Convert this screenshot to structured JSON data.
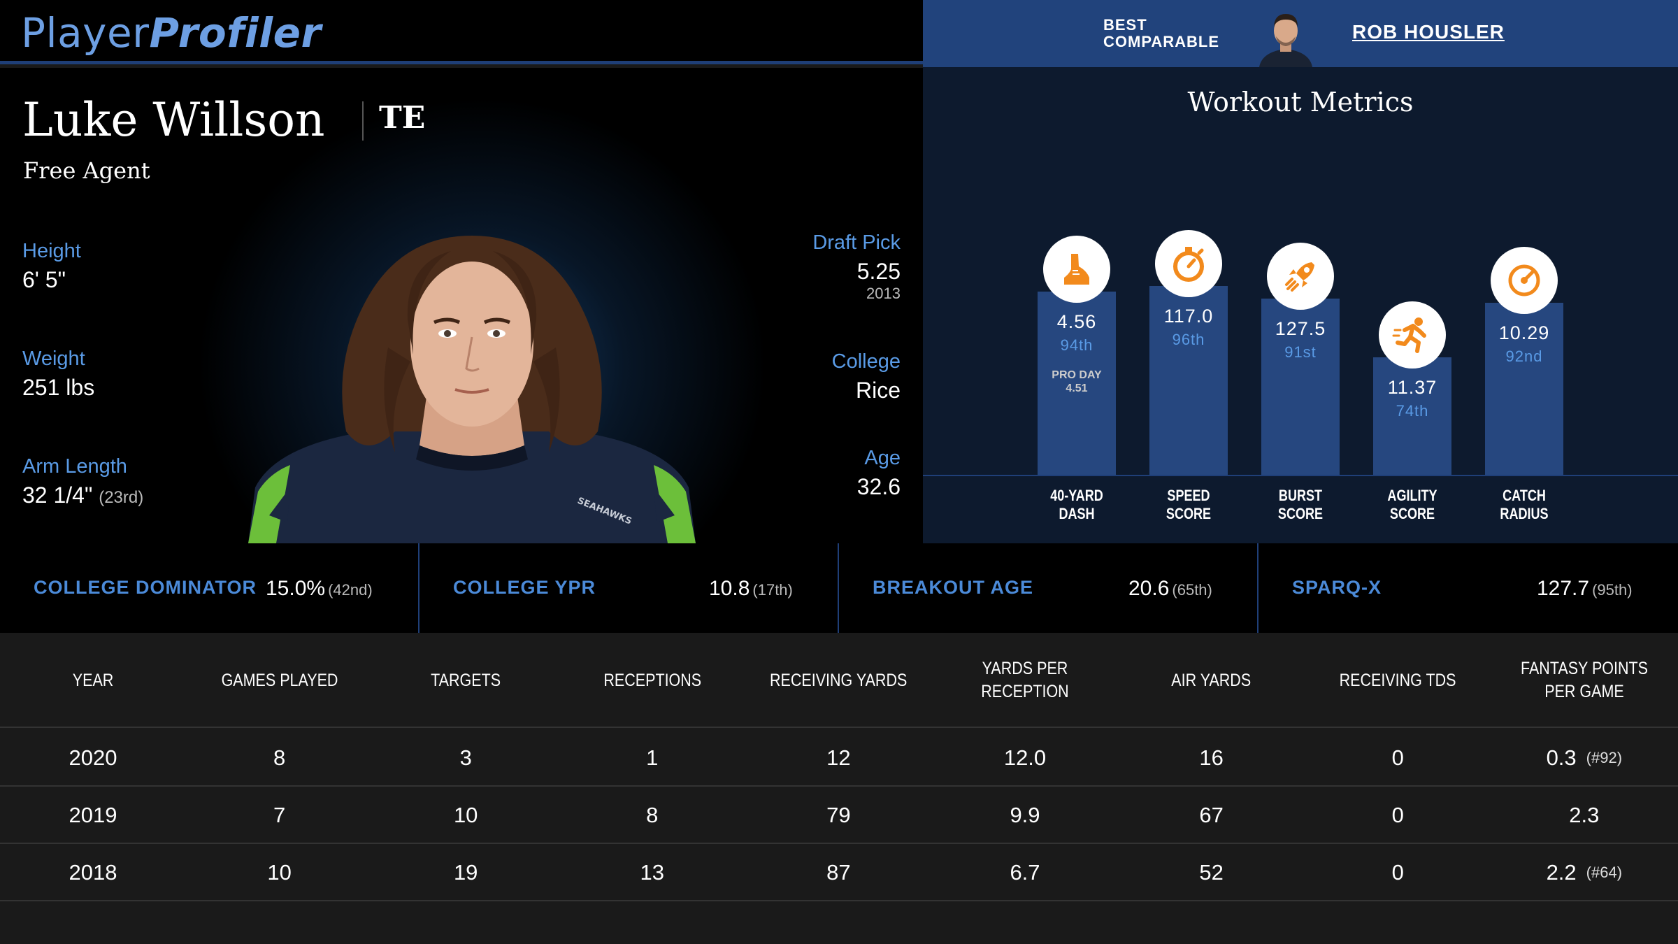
{
  "header": {
    "logo_part1": "Player",
    "logo_part2": "Profiler",
    "best_comparable_label_line1": "BEST",
    "best_comparable_label_line2": "COMPARABLE",
    "best_comparable_name": "ROB HOUSLER"
  },
  "player": {
    "name": "Luke Willson",
    "position": "TE",
    "team": "Free Agent",
    "height_label": "Height",
    "height_value": "6' 5\"",
    "weight_label": "Weight",
    "weight_value": "251 lbs",
    "arm_label": "Arm Length",
    "arm_value": "32 1/4\"",
    "arm_rank": "(23rd)",
    "draft_label": "Draft Pick",
    "draft_value": "5.25",
    "draft_year": "2013",
    "college_label": "College",
    "college_value": "Rice",
    "age_label": "Age",
    "age_value": "32.6",
    "jersey_text": "SEAHAWKS"
  },
  "workout": {
    "title": "Workout Metrics",
    "metrics": [
      {
        "icon": "running-shoe-icon",
        "value": "4.56",
        "percentile": "94th",
        "pro_day_label": "PRO DAY",
        "pro_day_value": "4.51",
        "label_line1": "40-YARD",
        "label_line2": "DASH",
        "level": 94
      },
      {
        "icon": "stopwatch-icon",
        "value": "117.0",
        "percentile": "96th",
        "label_line1": "SPEED",
        "label_line2": "SCORE",
        "level": 96
      },
      {
        "icon": "rocket-icon",
        "value": "127.5",
        "percentile": "91st",
        "label_line1": "BURST",
        "label_line2": "SCORE",
        "level": 91
      },
      {
        "icon": "sprinter-icon",
        "value": "11.37",
        "percentile": "74th",
        "label_line1": "AGILITY",
        "label_line2": "SCORE",
        "level": 74
      },
      {
        "icon": "target-icon",
        "value": "10.29",
        "percentile": "92nd",
        "label_line1": "CATCH",
        "label_line2": "RADIUS",
        "level": 92
      }
    ]
  },
  "advanced": [
    {
      "label": "COLLEGE DOMINATOR",
      "value": "15.0%",
      "rank": "(42nd)"
    },
    {
      "label": "COLLEGE YPR",
      "value": "10.8",
      "rank": "(17th)"
    },
    {
      "label": "BREAKOUT AGE",
      "value": "20.6",
      "rank": "(65th)"
    },
    {
      "label": "SPARQ-X",
      "value": "127.7",
      "rank": "(95th)"
    }
  ],
  "table": {
    "columns": [
      "YEAR",
      "GAMES PLAYED",
      "TARGETS",
      "RECEPTIONS",
      "RECEIVING YARDS",
      "YARDS PER RECEPTION",
      "AIR YARDS",
      "RECEIVING TDS",
      "FANTASY POINTS PER GAME"
    ],
    "rows": [
      {
        "cells": [
          "2020",
          "8",
          "3",
          "1",
          "12",
          "12.0",
          "16",
          "0",
          "0.3"
        ],
        "rank": "(#92)"
      },
      {
        "cells": [
          "2019",
          "7",
          "10",
          "8",
          "79",
          "9.9",
          "67",
          "0",
          "2.3"
        ],
        "rank": ""
      },
      {
        "cells": [
          "2018",
          "10",
          "19",
          "13",
          "87",
          "6.7",
          "52",
          "0",
          "2.2"
        ],
        "rank": "(#64)"
      }
    ]
  },
  "colors": {
    "accent_blue": "#5a9be6",
    "bar_blue": "#26477f",
    "header_blue": "#21437c",
    "icon_orange": "#f28a1c"
  }
}
